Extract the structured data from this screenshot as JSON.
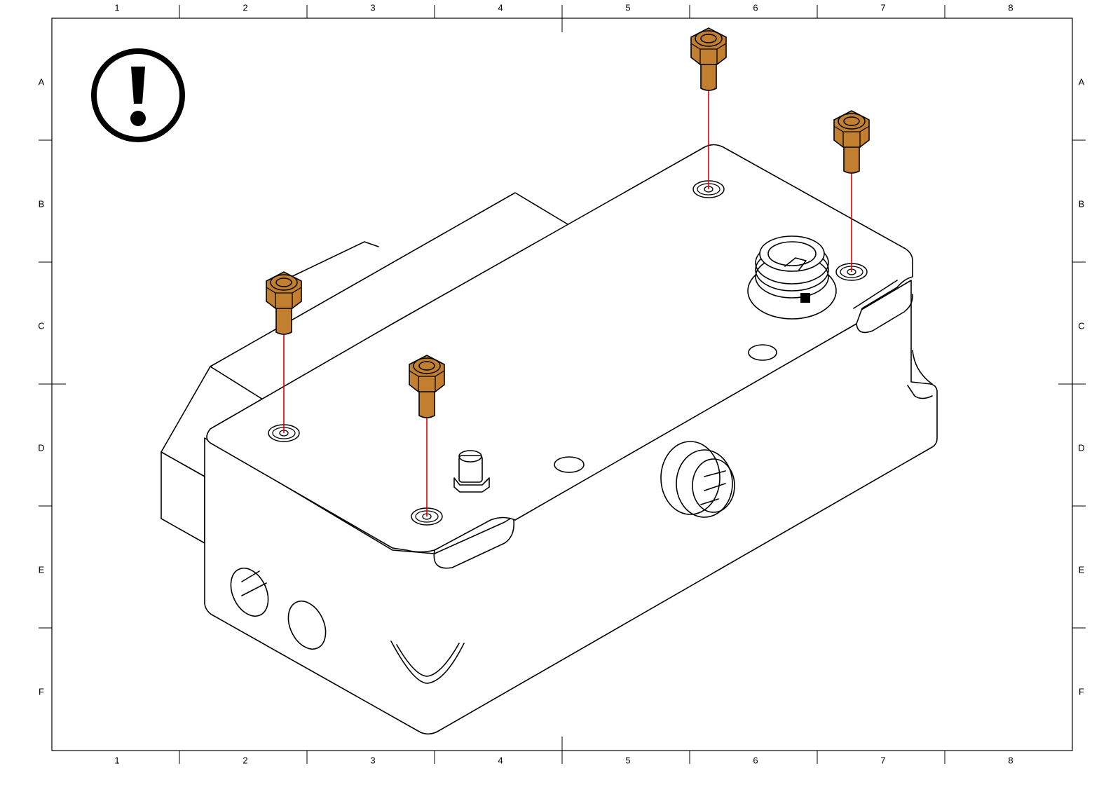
{
  "drawing": {
    "columns": [
      "1",
      "2",
      "3",
      "4",
      "5",
      "6",
      "7",
      "8"
    ],
    "rows": [
      "A",
      "B",
      "C",
      "D",
      "E",
      "F"
    ],
    "warning_icon": "exclamation-circle-icon",
    "colors": {
      "screw": "#C17F2F",
      "guide_line": "#E00000",
      "outline": "#000000"
    },
    "screws": [
      {
        "name": "screw-top-center"
      },
      {
        "name": "screw-top-right"
      },
      {
        "name": "screw-left"
      },
      {
        "name": "screw-front"
      }
    ]
  }
}
